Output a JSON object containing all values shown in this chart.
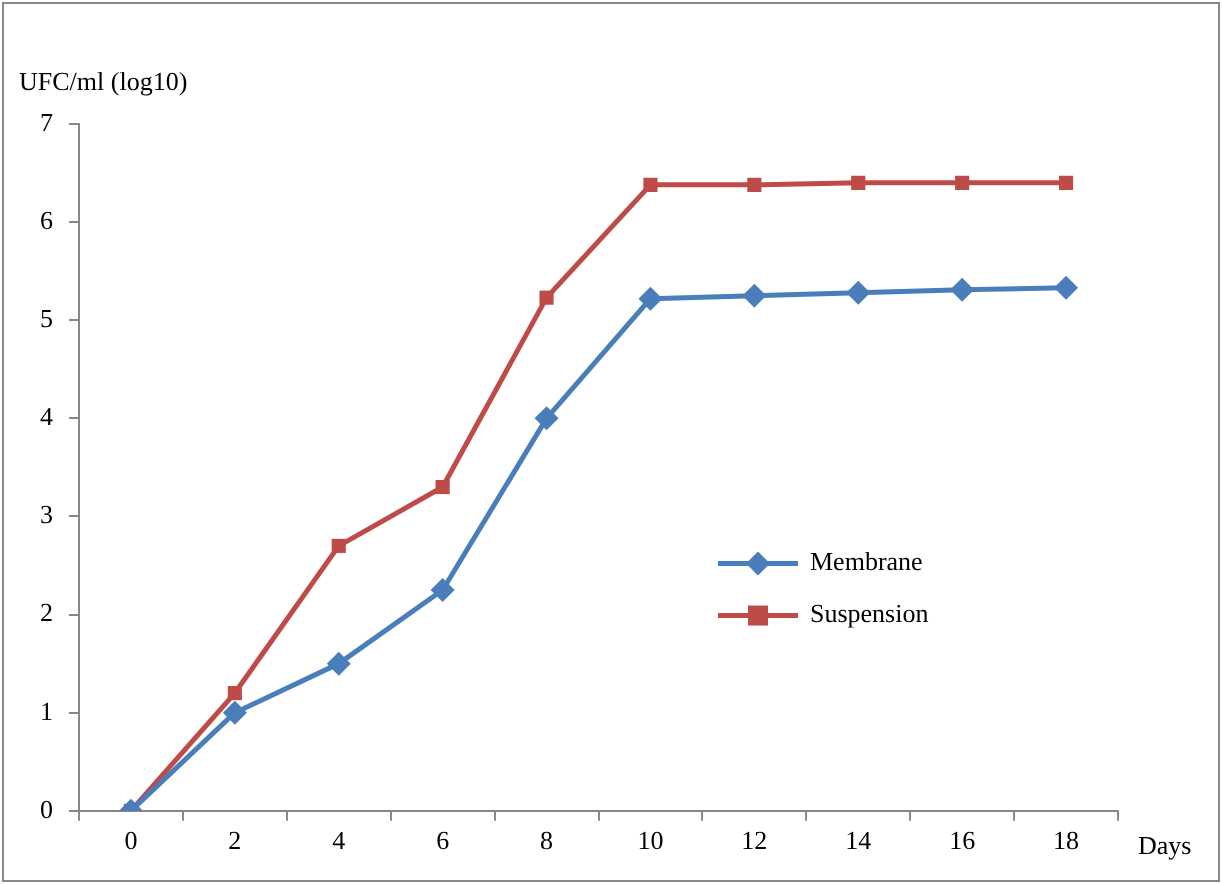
{
  "chart_data": {
    "type": "line",
    "ylabel": "UFC/ml (log10)",
    "xlabel": "Days",
    "categories": [
      "0",
      "2",
      "4",
      "6",
      "8",
      "10",
      "12",
      "14",
      "16",
      "18"
    ],
    "series": [
      {
        "name": "Membrane",
        "color": "#4a7ebb",
        "marker": "diamond",
        "values": [
          0,
          1,
          1.5,
          2.25,
          4,
          5.22,
          5.25,
          5.28,
          5.31,
          5.33
        ]
      },
      {
        "name": "Suspension",
        "color": "#be4b48",
        "marker": "square",
        "values": [
          0,
          1.2,
          2.7,
          3.3,
          5.23,
          6.38,
          6.38,
          6.4,
          6.4,
          6.4
        ]
      }
    ],
    "ylim": [
      0,
      7
    ],
    "yticks": [
      0,
      1,
      2,
      3,
      4,
      5,
      6,
      7
    ],
    "grid": false,
    "legend": "right"
  }
}
